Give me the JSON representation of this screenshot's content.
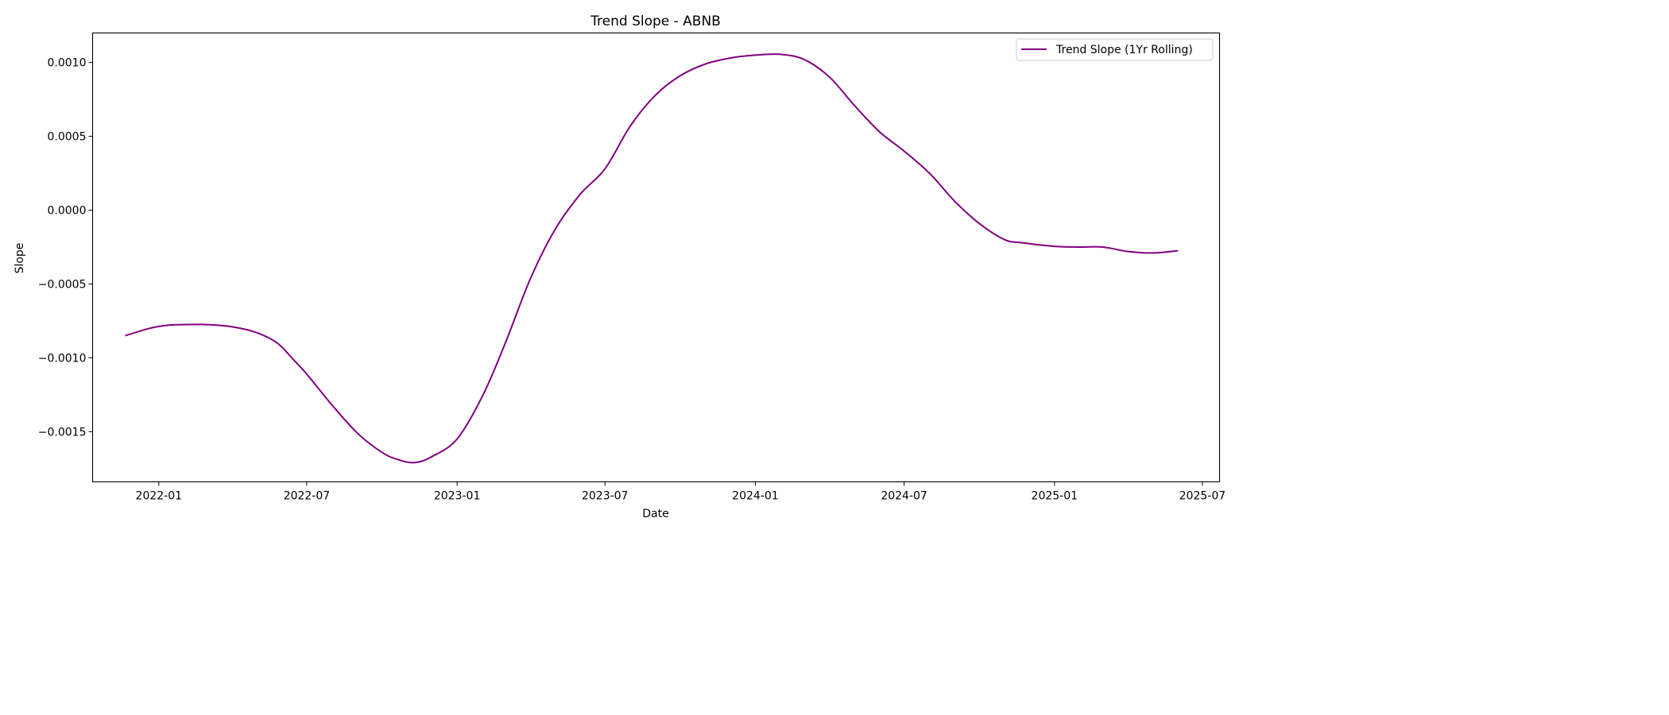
{
  "chart_data": {
    "type": "line",
    "title": "Trend Slope - ABNB",
    "xlabel": "Date",
    "ylabel": "Slope",
    "x_ticks": [
      "2022-01",
      "2022-07",
      "2023-01",
      "2023-07",
      "2024-01",
      "2024-07",
      "2025-01",
      "2025-07"
    ],
    "y_ticks": [
      0.001,
      0.0005,
      0.0,
      -0.0005,
      -0.001,
      -0.0015
    ],
    "y_tick_labels": [
      "0.0010",
      "0.0005",
      "0.0000",
      "−0.0005",
      "−0.0010",
      "−0.0015"
    ],
    "xlim": [
      "2021-10-12",
      "2025-07-22"
    ],
    "ylim": [
      -0.00184,
      0.0012
    ],
    "grid": false,
    "legend_position": "top-right",
    "series": [
      {
        "name": "Trend Slope (1Yr Rolling)",
        "color": "#800080",
        "points": [
          [
            "2021-11-21",
            -0.00085
          ],
          [
            "2021-12-21",
            -0.0008
          ],
          [
            "2022-01-11",
            -0.00078
          ],
          [
            "2022-02-01",
            -0.000775
          ],
          [
            "2022-03-01",
            -0.000775
          ],
          [
            "2022-04-01",
            -0.00079
          ],
          [
            "2022-05-01",
            -0.00083
          ],
          [
            "2022-05-26",
            -0.0009
          ],
          [
            "2022-06-16",
            -0.00102
          ],
          [
            "2022-07-01",
            -0.00111
          ],
          [
            "2022-08-01",
            -0.00132
          ],
          [
            "2022-09-01",
            -0.00151
          ],
          [
            "2022-10-01",
            -0.00164
          ],
          [
            "2022-10-21",
            -0.00169
          ],
          [
            "2022-11-10",
            -0.00171
          ],
          [
            "2022-12-01",
            -0.00167
          ],
          [
            "2023-01-01",
            -0.00155
          ],
          [
            "2023-02-01",
            -0.00126
          ],
          [
            "2023-03-01",
            -0.0009
          ],
          [
            "2023-04-01",
            -0.00046
          ],
          [
            "2023-05-01",
            -0.00013
          ],
          [
            "2023-06-01",
            0.00011
          ],
          [
            "2023-07-01",
            0.00028
          ],
          [
            "2023-08-01",
            0.00057
          ],
          [
            "2023-09-01",
            0.00078
          ],
          [
            "2023-10-01",
            0.00091
          ],
          [
            "2023-11-01",
            0.00099
          ],
          [
            "2023-12-01",
            0.00103
          ],
          [
            "2024-01-01",
            0.00105
          ],
          [
            "2024-02-01",
            0.001055
          ],
          [
            "2024-03-01",
            0.00102
          ],
          [
            "2024-04-01",
            0.0009
          ],
          [
            "2024-05-01",
            0.00071
          ],
          [
            "2024-06-01",
            0.00053
          ],
          [
            "2024-07-01",
            0.0004
          ],
          [
            "2024-08-01",
            0.00025
          ],
          [
            "2024-09-01",
            6e-05
          ],
          [
            "2024-10-01",
            -9e-05
          ],
          [
            "2024-11-01",
            -0.0002
          ],
          [
            "2024-11-21",
            -0.00022
          ],
          [
            "2025-01-01",
            -0.000245
          ],
          [
            "2025-02-01",
            -0.00025
          ],
          [
            "2025-03-01",
            -0.00025
          ],
          [
            "2025-04-01",
            -0.00028
          ],
          [
            "2025-05-01",
            -0.00029
          ],
          [
            "2025-06-01",
            -0.000275
          ]
        ]
      }
    ]
  }
}
